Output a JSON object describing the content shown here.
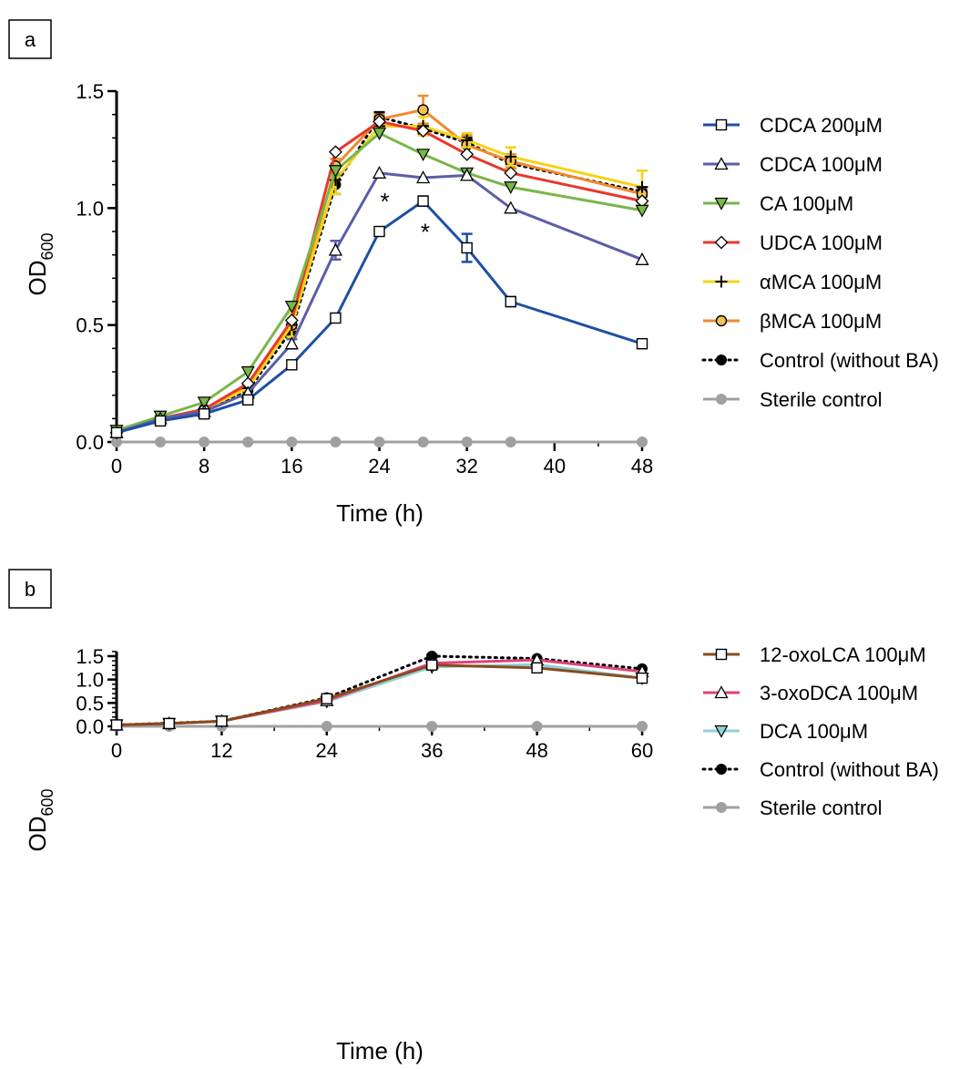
{
  "chart_data": [
    {
      "type": "line",
      "panel_label": "a",
      "xlabel": "Time (h)",
      "ylabel_main": "OD",
      "ylabel_sub": "600",
      "xlim": [
        0,
        48
      ],
      "ylim": [
        0,
        1.5
      ],
      "xticks": [
        "0",
        "8",
        "16",
        "24",
        "32",
        "40",
        "48"
      ],
      "yticks": [
        "0.0",
        "0.5",
        "1.0",
        "1.5"
      ],
      "legend_position": "right",
      "grid": false,
      "annotations": [
        {
          "text": "*",
          "x": 24.5,
          "y": 1.04
        },
        {
          "text": "*",
          "x": 28.2,
          "y": 0.91
        }
      ],
      "series": [
        {
          "name": "CDCA 200μM",
          "color": "#1f4fa3",
          "marker": "square",
          "line": "solid",
          "x": [
            0,
            4,
            8,
            12,
            16,
            20,
            24,
            28,
            32,
            36,
            48
          ],
          "y": [
            0.04,
            0.09,
            0.12,
            0.18,
            0.33,
            0.53,
            0.9,
            1.03,
            0.83,
            0.6,
            0.42
          ],
          "err": [
            0.01,
            0.01,
            0.01,
            0.01,
            0.01,
            0.01,
            0.01,
            0.02,
            0.06,
            0.02,
            0.01
          ]
        },
        {
          "name": "CDCA 100μM",
          "color": "#5b5ea8",
          "marker": "triangle-up",
          "line": "solid",
          "x": [
            0,
            4,
            8,
            12,
            16,
            20,
            24,
            28,
            32,
            36,
            48
          ],
          "y": [
            0.04,
            0.1,
            0.13,
            0.21,
            0.42,
            0.82,
            1.15,
            1.13,
            1.14,
            1.0,
            0.78
          ],
          "err": [
            0.01,
            0.01,
            0.01,
            0.01,
            0.02,
            0.04,
            0.01,
            0.01,
            0.01,
            0.01,
            0.01
          ]
        },
        {
          "name": "CA 100μM",
          "color": "#7ab648",
          "marker": "triangle-down",
          "line": "solid",
          "x": [
            0,
            4,
            8,
            12,
            16,
            20,
            24,
            28,
            32,
            36,
            48
          ],
          "y": [
            0.05,
            0.11,
            0.17,
            0.3,
            0.58,
            1.16,
            1.32,
            1.23,
            1.15,
            1.09,
            0.99
          ],
          "err": [
            0.01,
            0.01,
            0.01,
            0.01,
            0.01,
            0.02,
            0.01,
            0.01,
            0.01,
            0.01,
            0.01
          ]
        },
        {
          "name": "UDCA 100μM",
          "color": "#e8382c",
          "marker": "diamond",
          "line": "solid",
          "x": [
            0,
            4,
            8,
            12,
            16,
            20,
            24,
            28,
            32,
            36,
            48
          ],
          "y": [
            0.04,
            0.1,
            0.14,
            0.25,
            0.52,
            1.24,
            1.37,
            1.33,
            1.23,
            1.15,
            1.03
          ],
          "err": [
            0.01,
            0.01,
            0.01,
            0.01,
            0.01,
            0.01,
            0.01,
            0.01,
            0.01,
            0.01,
            0.01
          ]
        },
        {
          "name": "αMCA 100μM",
          "color": "#f5d219",
          "marker": "plus",
          "line": "solid",
          "x": [
            0,
            4,
            8,
            12,
            16,
            20,
            24,
            28,
            32,
            36,
            48
          ],
          "y": [
            0.04,
            0.1,
            0.14,
            0.23,
            0.5,
            1.12,
            1.35,
            1.35,
            1.29,
            1.22,
            1.09
          ],
          "err": [
            0.01,
            0.01,
            0.01,
            0.01,
            0.05,
            0.06,
            0.02,
            0.04,
            0.03,
            0.04,
            0.07
          ]
        },
        {
          "name": "βMCA 100μM",
          "color": "#f08a2c",
          "marker": "circle-open",
          "line": "solid",
          "x": [
            0,
            4,
            8,
            12,
            16,
            20,
            24,
            28,
            32,
            36,
            48
          ],
          "y": [
            0.04,
            0.1,
            0.14,
            0.24,
            0.5,
            1.18,
            1.38,
            1.42,
            1.27,
            1.2,
            1.06
          ],
          "err": [
            0.01,
            0.01,
            0.01,
            0.01,
            0.02,
            0.03,
            0.02,
            0.06,
            0.04,
            0.03,
            0.03
          ]
        },
        {
          "name": "Control (without BA)",
          "color": "#000000",
          "marker": "circle-filled",
          "line": "dotted",
          "x": [
            0,
            4,
            8,
            12,
            16,
            20,
            24,
            28,
            32,
            36,
            48
          ],
          "y": [
            0.04,
            0.1,
            0.14,
            0.22,
            0.48,
            1.1,
            1.39,
            1.34,
            1.28,
            1.19,
            1.07
          ],
          "err": [
            0.01,
            0.01,
            0.01,
            0.01,
            0.02,
            0.04,
            0.02,
            0.02,
            0.02,
            0.02,
            0.02
          ]
        },
        {
          "name": "Sterile control",
          "color": "#a0a0a0",
          "marker": "circle-filled",
          "line": "solid",
          "x": [
            0,
            4,
            8,
            12,
            16,
            20,
            24,
            28,
            32,
            36,
            48
          ],
          "y": [
            0,
            0,
            0,
            0,
            0,
            0,
            0,
            0,
            0,
            0,
            0
          ],
          "err": [
            0,
            0,
            0,
            0,
            0,
            0,
            0,
            0,
            0,
            0,
            0
          ]
        }
      ]
    },
    {
      "type": "line",
      "panel_label": "b",
      "xlabel": "Time (h)",
      "ylabel_main": "OD",
      "ylabel_sub": "600",
      "xlim": [
        0,
        60
      ],
      "ylim": [
        0,
        1.6
      ],
      "xticks": [
        "0",
        "12",
        "24",
        "36",
        "48",
        "60"
      ],
      "yticks": [
        "0.0",
        "0.5",
        "1.0",
        "1.5"
      ],
      "legend_position": "right",
      "grid": false,
      "annotations": [],
      "series": [
        {
          "name": "12-oxoLCA 100μM",
          "color": "#8a4a1e",
          "marker": "square",
          "line": "solid",
          "x": [
            0,
            6,
            12,
            24,
            36,
            48,
            60
          ],
          "y": [
            0.03,
            0.06,
            0.11,
            0.59,
            1.31,
            1.25,
            1.03
          ],
          "err": [
            0.01,
            0.01,
            0.01,
            0.03,
            0.01,
            0.01,
            0.01
          ]
        },
        {
          "name": "3-oxoDCA 100μM",
          "color": "#e0417a",
          "marker": "triangle-up",
          "line": "solid",
          "x": [
            0,
            6,
            12,
            24,
            36,
            48,
            60
          ],
          "y": [
            0.03,
            0.06,
            0.11,
            0.55,
            1.35,
            1.42,
            1.17
          ],
          "err": [
            0.01,
            0.01,
            0.01,
            0.02,
            0.03,
            0.01,
            0.01
          ]
        },
        {
          "name": "DCA 100μM",
          "color": "#8fd1d4",
          "marker": "triangle-down",
          "line": "solid",
          "x": [
            0,
            6,
            12,
            24,
            36,
            48,
            60
          ],
          "y": [
            0.03,
            0.06,
            0.11,
            0.53,
            1.27,
            1.32,
            1.03
          ],
          "err": [
            0.01,
            0.01,
            0.01,
            0.02,
            0.01,
            0.01,
            0.01
          ]
        },
        {
          "name": "Control (without BA)",
          "color": "#000000",
          "marker": "circle-filled",
          "line": "dotted",
          "x": [
            0,
            6,
            12,
            24,
            36,
            48,
            60
          ],
          "y": [
            0.03,
            0.07,
            0.11,
            0.61,
            1.5,
            1.45,
            1.23
          ],
          "err": [
            0.01,
            0.01,
            0.01,
            0.03,
            0.03,
            0.01,
            0.01
          ]
        },
        {
          "name": "Sterile control",
          "color": "#a0a0a0",
          "marker": "circle-filled",
          "line": "solid",
          "x": [
            0,
            6,
            12,
            24,
            36,
            48,
            60
          ],
          "y": [
            0,
            0,
            0,
            0,
            0,
            0,
            0
          ],
          "err": [
            0,
            0,
            0,
            0,
            0,
            0,
            0
          ]
        }
      ]
    }
  ]
}
